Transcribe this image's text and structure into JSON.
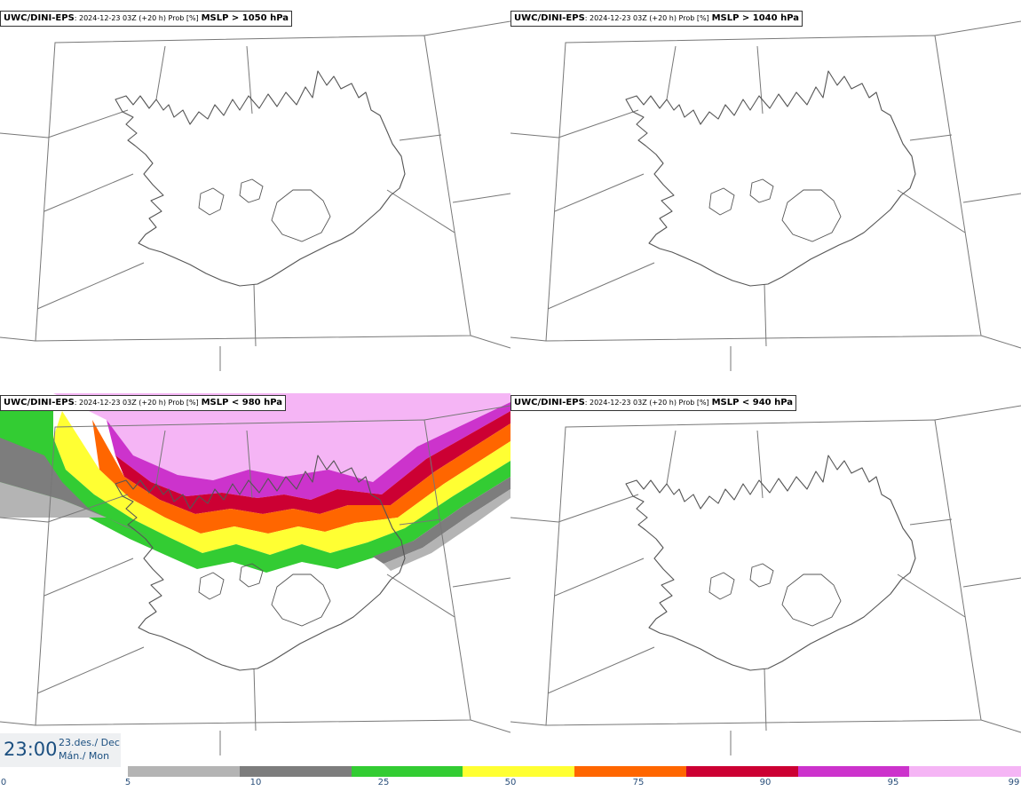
{
  "panels": [
    {
      "model": "UWC/DINI-EPS",
      "meta": ": 2024-12-23 03Z (+20 h) Prob [%]",
      "field": "MSLP > 1050 hPa"
    },
    {
      "model": "UWC/DINI-EPS",
      "meta": ": 2024-12-23 03Z (+20 h) Prob [%]",
      "field": "MSLP > 1040 hPa"
    },
    {
      "model": "UWC/DINI-EPS",
      "meta": ": 2024-12-23 03Z (+20 h) Prob [%]",
      "field": "MSLP < 980 hPa"
    },
    {
      "model": "UWC/DINI-EPS",
      "meta": ": 2024-12-23 03Z (+20 h) Prob [%]",
      "field": "MSLP < 940 hPa"
    }
  ],
  "valid_time": {
    "time": "23:00",
    "date": "23.des./ Dec",
    "day": "Mán./ Mon"
  },
  "legend": {
    "ticks": [
      "0",
      "5",
      "10",
      "25",
      "50",
      "75",
      "90",
      "95",
      "99"
    ],
    "colors": [
      "#b4b4b4",
      "#7d7d7d",
      "#33cc33",
      "#ffff33",
      "#ff6600",
      "#cc0033",
      "#cc33cc",
      "#f5b5f5"
    ]
  },
  "map": {
    "region": "Iceland",
    "coastline_color": "#555555",
    "grid_color": "#777777",
    "filled_panel_index": 2
  }
}
